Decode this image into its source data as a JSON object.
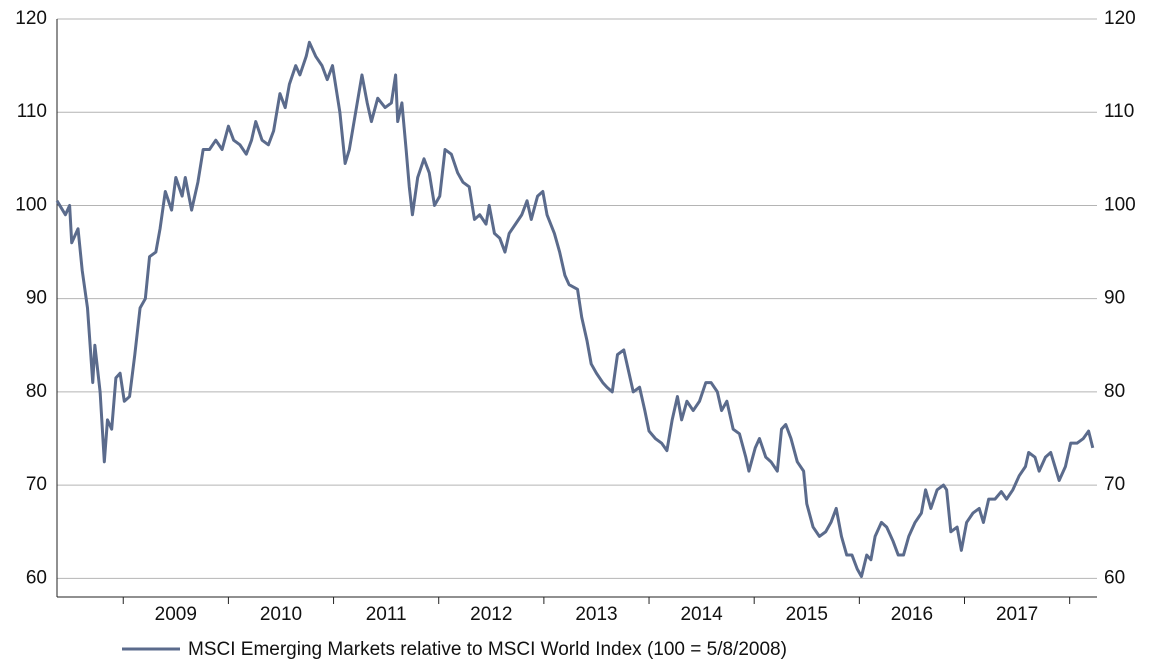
{
  "chart_data": {
    "type": "line",
    "legend": "MSCI Emerging Markets relative to MSCI World Index (100 = 5/8/2008)",
    "legend_position": "bottom",
    "color": "#5b6b8c",
    "grid": true,
    "ylim": [
      58,
      120
    ],
    "yticks": [
      60,
      70,
      80,
      90,
      100,
      110,
      120
    ],
    "y2ticks": [
      60,
      70,
      80,
      90,
      100,
      110,
      120
    ],
    "xlim": [
      2008.37,
      2018.26
    ],
    "xtick_marks": [
      2009,
      2010,
      2011,
      2012,
      2013,
      2014,
      2015,
      2016,
      2017,
      2018
    ],
    "xticks": [
      {
        "value": 2009.5,
        "label": "2009"
      },
      {
        "value": 2010.5,
        "label": "2010"
      },
      {
        "value": 2011.5,
        "label": "2011"
      },
      {
        "value": 2012.5,
        "label": "2012"
      },
      {
        "value": 2013.5,
        "label": "2013"
      },
      {
        "value": 2014.5,
        "label": "2014"
      },
      {
        "value": 2015.5,
        "label": "2015"
      },
      {
        "value": 2016.5,
        "label": "2016"
      },
      {
        "value": 2017.5,
        "label": "2017"
      }
    ],
    "x": [
      2008.37,
      2008.45,
      2008.49,
      2008.51,
      2008.57,
      2008.61,
      2008.66,
      2008.71,
      2008.73,
      2008.78,
      2008.82,
      2008.85,
      2008.89,
      2008.93,
      2008.97,
      2009.01,
      2009.06,
      2009.11,
      2009.16,
      2009.21,
      2009.25,
      2009.31,
      2009.35,
      2009.4,
      2009.46,
      2009.5,
      2009.56,
      2009.59,
      2009.65,
      2009.71,
      2009.76,
      2009.82,
      2009.88,
      2009.94,
      2010.0,
      2010.05,
      2010.11,
      2010.17,
      2010.22,
      2010.26,
      2010.32,
      2010.38,
      2010.43,
      2010.49,
      2010.54,
      2010.58,
      2010.64,
      2010.68,
      2010.74,
      2010.77,
      2010.83,
      2010.89,
      2010.94,
      2010.99,
      2011.06,
      2011.11,
      2011.15,
      2011.21,
      2011.27,
      2011.32,
      2011.36,
      2011.42,
      2011.49,
      2011.55,
      2011.59,
      2011.61,
      2011.65,
      2011.69,
      2011.72,
      2011.75,
      2011.8,
      2011.86,
      2011.91,
      2011.96,
      2012.01,
      2012.06,
      2012.12,
      2012.18,
      2012.23,
      2012.29,
      2012.34,
      2012.39,
      2012.45,
      2012.48,
      2012.53,
      2012.58,
      2012.63,
      2012.67,
      2012.73,
      2012.79,
      2012.84,
      2012.88,
      2012.94,
      2012.99,
      2013.03,
      2013.1,
      2013.15,
      2013.2,
      2013.24,
      2013.32,
      2013.36,
      2013.41,
      2013.45,
      2013.5,
      2013.56,
      2013.6,
      2013.65,
      2013.7,
      2013.76,
      2013.81,
      2013.85,
      2013.91,
      2013.96,
      2014.0,
      2014.06,
      2014.12,
      2014.17,
      2014.22,
      2014.27,
      2014.31,
      2014.36,
      2014.42,
      2014.48,
      2014.54,
      2014.59,
      2014.65,
      2014.69,
      2014.74,
      2014.8,
      2014.86,
      2014.92,
      2014.95,
      2015.01,
      2015.05,
      2015.11,
      2015.16,
      2015.22,
      2015.26,
      2015.3,
      2015.35,
      2015.41,
      2015.47,
      2015.5,
      2015.56,
      2015.62,
      2015.68,
      2015.73,
      2015.78,
      2015.83,
      2015.88,
      2015.93,
      2015.98,
      2016.02,
      2016.07,
      2016.11,
      2016.15,
      2016.21,
      2016.26,
      2016.32,
      2016.37,
      2016.42,
      2016.47,
      2016.53,
      2016.59,
      2016.63,
      2016.68,
      2016.74,
      2016.8,
      2016.83,
      2016.87,
      2016.93,
      2016.97,
      2017.02,
      2017.08,
      2017.14,
      2017.18,
      2017.23,
      2017.29,
      2017.35,
      2017.4,
      2017.46,
      2017.52,
      2017.58,
      2017.61,
      2017.67,
      2017.71,
      2017.77,
      2017.82,
      2017.86,
      2017.9,
      2017.96,
      2018.01,
      2018.07,
      2018.13,
      2018.18,
      2018.22
    ],
    "values": [
      100.5,
      99,
      100,
      96,
      97.5,
      93,
      89,
      81,
      85,
      80,
      72.5,
      77,
      76,
      81.5,
      82,
      79,
      79.5,
      84,
      89,
      90,
      94.5,
      95,
      97.5,
      101.5,
      99.5,
      103,
      101,
      103,
      99.5,
      102.5,
      106,
      106,
      107,
      106,
      108.5,
      107,
      106.5,
      105.5,
      107,
      109,
      107,
      106.5,
      108,
      112,
      110.5,
      113,
      115,
      114,
      116,
      117.5,
      116,
      115,
      113.5,
      115,
      110,
      104.5,
      106,
      110,
      114,
      111,
      109,
      111.5,
      110.5,
      111,
      114,
      109,
      111,
      106,
      102,
      99,
      103,
      105,
      103.5,
      100,
      101,
      106,
      105.5,
      103.5,
      102.5,
      102,
      98.5,
      99,
      98,
      100,
      97,
      96.5,
      95,
      97,
      98,
      99,
      100.5,
      98.5,
      101,
      101.5,
      99,
      97,
      95,
      92.5,
      91.5,
      91,
      88,
      85.5,
      83,
      82,
      81,
      80.5,
      80,
      84,
      84.5,
      82,
      80,
      80.5,
      78,
      75.8,
      75,
      74.5,
      73.7,
      77,
      79.5,
      77,
      79,
      78,
      79,
      81,
      81,
      80,
      78,
      79,
      76,
      75.5,
      73,
      71.5,
      74,
      75,
      73,
      72.5,
      71.5,
      76,
      76.5,
      75,
      72.5,
      71.5,
      68,
      65.5,
      64.5,
      65,
      66,
      67.5,
      64.5,
      62.5,
      62.5,
      61,
      60.2,
      62.5,
      62,
      64.5,
      66,
      65.5,
      64,
      62.5,
      62.5,
      64.5,
      66,
      67,
      69.5,
      67.5,
      69.5,
      70,
      69.5,
      65,
      65.5,
      63,
      66,
      67,
      67.5,
      66,
      68.5,
      68.5,
      69.3,
      68.5,
      69.5,
      71,
      72,
      73.5,
      73,
      71.5,
      73,
      73.5,
      72,
      70.5,
      72,
      74.5,
      74.5,
      75,
      75.8,
      74
    ]
  }
}
